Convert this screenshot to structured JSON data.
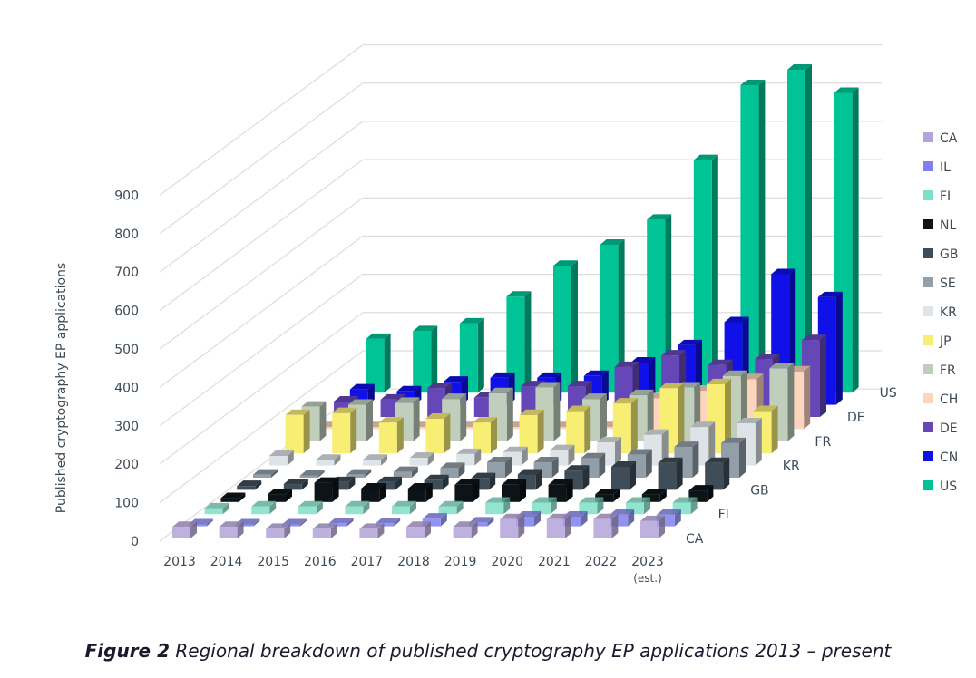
{
  "chart_data": {
    "type": "bar",
    "subtype": "3d-clustered-depth",
    "ylabel": "Published cryptography EP applications",
    "ylim": [
      0,
      900
    ],
    "yticks": [
      0,
      100,
      200,
      300,
      400,
      500,
      600,
      700,
      800,
      900
    ],
    "grid": true,
    "legend_position": "right",
    "categories": [
      "2013",
      "2014",
      "2015",
      "2016",
      "2017",
      "2018",
      "2019",
      "2020",
      "2021",
      "2022",
      "2023 (est.)"
    ],
    "depth_axis_labels": [
      "CA",
      "FI",
      "GB",
      "KR",
      "FR",
      "DE",
      "US"
    ],
    "series": [
      {
        "name": "CA",
        "color": "#b3a3da",
        "values": [
          30,
          30,
          25,
          25,
          25,
          30,
          30,
          50,
          50,
          50,
          45
        ]
      },
      {
        "name": "IL",
        "color": "#8080f2",
        "values": [
          5,
          5,
          5,
          8,
          8,
          20,
          10,
          25,
          25,
          30,
          30
        ]
      },
      {
        "name": "FI",
        "color": "#7de0c8",
        "values": [
          15,
          20,
          20,
          20,
          20,
          20,
          30,
          30,
          30,
          30,
          30
        ]
      },
      {
        "name": "NL",
        "color": "#0d1418",
        "values": [
          10,
          20,
          50,
          35,
          35,
          45,
          45,
          45,
          20,
          20,
          30
        ]
      },
      {
        "name": "GB",
        "color": "#3f4d58",
        "values": [
          10,
          15,
          20,
          20,
          25,
          30,
          40,
          50,
          60,
          70,
          70
        ]
      },
      {
        "name": "SE",
        "color": "#939fa8",
        "values": [
          8,
          5,
          8,
          15,
          25,
          40,
          40,
          50,
          60,
          80,
          90
        ]
      },
      {
        "name": "KR",
        "color": "#dde3e6",
        "values": [
          25,
          15,
          15,
          20,
          30,
          35,
          40,
          60,
          80,
          100,
          110
        ]
      },
      {
        "name": "JP",
        "color": "#f9ee74",
        "values": [
          100,
          105,
          80,
          90,
          80,
          100,
          110,
          130,
          170,
          180,
          110
        ]
      },
      {
        "name": "FR",
        "color": "#bfcfbc",
        "values": [
          90,
          95,
          100,
          110,
          125,
          140,
          110,
          120,
          140,
          170,
          190
        ]
      },
      {
        "name": "CH",
        "color": "#fdd5bd",
        "values": [
          5,
          5,
          5,
          5,
          5,
          5,
          5,
          80,
          100,
          130,
          150
        ]
      },
      {
        "name": "DE",
        "color": "#6647b7",
        "values": [
          40,
          45,
          75,
          50,
          80,
          80,
          130,
          160,
          135,
          150,
          200
        ]
      },
      {
        "name": "CN",
        "color": "#1010e8",
        "values": [
          40,
          35,
          60,
          70,
          70,
          75,
          110,
          155,
          215,
          340,
          280
        ]
      },
      {
        "name": "US",
        "color": "#00c496",
        "values": [
          140,
          160,
          180,
          250,
          330,
          385,
          450,
          605,
          800,
          840,
          780
        ]
      }
    ]
  },
  "caption": {
    "label": "Figure 2",
    "text": " Regional breakdown of published cryptography EP applications 2013 – present"
  }
}
